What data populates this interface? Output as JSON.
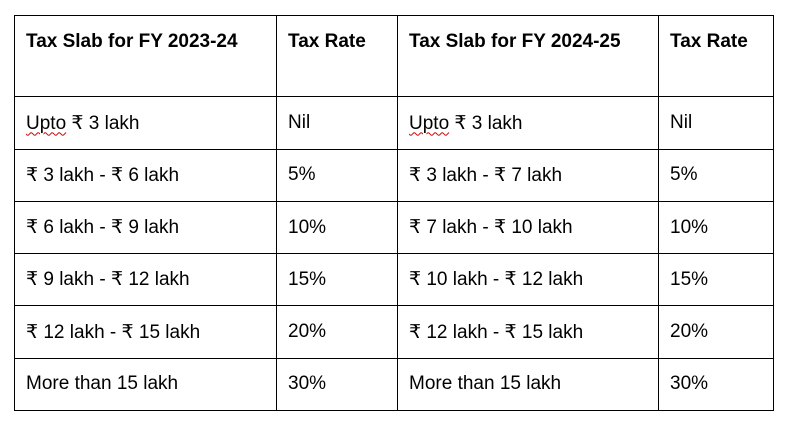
{
  "table": {
    "headers": [
      "Tax Slab for FY 2023-24",
      "Tax Rate",
      "Tax Slab for FY 2024-25",
      "Tax Rate"
    ],
    "rows": [
      {
        "slab_2023": "₹ 3 lakh",
        "slab_2023_prefix": "Upto",
        "rate_2023": "Nil",
        "slab_2024": "₹ 3 lakh",
        "slab_2024_prefix": "Upto",
        "rate_2024": "Nil"
      },
      {
        "slab_2023": "₹ 3 lakh - ₹ 6 lakh",
        "rate_2023": "5%",
        "slab_2024": "₹ 3 lakh - ₹ 7 lakh",
        "rate_2024": "5%"
      },
      {
        "slab_2023": "₹ 6 lakh - ₹ 9 lakh",
        "rate_2023": "10%",
        "slab_2024": "₹ 7 lakh - ₹ 10 lakh",
        "rate_2024": "10%"
      },
      {
        "slab_2023": "₹ 9 lakh - ₹ 12 lakh",
        "rate_2023": "15%",
        "slab_2024": "₹ 10 lakh - ₹ 12 lakh",
        "rate_2024": "15%"
      },
      {
        "slab_2023": "₹ 12 lakh - ₹ 15 lakh",
        "rate_2023": "20%",
        "slab_2024": "₹ 12 lakh - ₹ 15 lakh",
        "rate_2024": "20%"
      },
      {
        "slab_2023": "More than 15 lakh",
        "rate_2023": "30%",
        "slab_2024": "More than 15 lakh",
        "rate_2024": "30%"
      }
    ]
  }
}
